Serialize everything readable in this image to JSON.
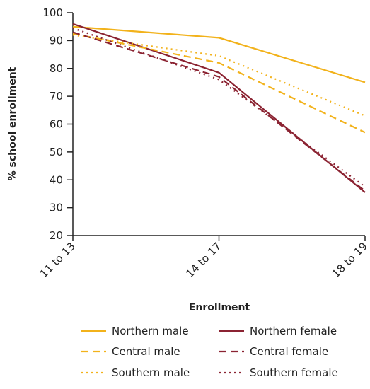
{
  "chart_data": {
    "type": "line",
    "title": "",
    "xlabel": "Enrollment",
    "ylabel": "% school enrollment",
    "categories": [
      "11 to 13",
      "14 to 17",
      "18 to 19"
    ],
    "ylim": [
      20,
      100
    ],
    "yticks": [
      20,
      30,
      40,
      50,
      60,
      70,
      80,
      90,
      100
    ],
    "grid": false,
    "legend_position": "bottom",
    "series": [
      {
        "name": "Northern male",
        "values": [
          95,
          91,
          75
        ],
        "color": "#F2B21B",
        "style": "solid"
      },
      {
        "name": "Northern female",
        "values": [
          96,
          78.5,
          35.5
        ],
        "color": "#8B2332",
        "style": "solid"
      },
      {
        "name": "Central male",
        "values": [
          92.5,
          82,
          57
        ],
        "color": "#F2B21B",
        "style": "dashed"
      },
      {
        "name": "Central female",
        "values": [
          93,
          77,
          36
        ],
        "color": "#8B2332",
        "style": "dashed"
      },
      {
        "name": "Southern male",
        "values": [
          92,
          84.5,
          63
        ],
        "color": "#F2B21B",
        "style": "dotted"
      },
      {
        "name": "Southern female",
        "values": [
          94.5,
          76,
          37.5
        ],
        "color": "#8B2332",
        "style": "dotted"
      }
    ]
  }
}
